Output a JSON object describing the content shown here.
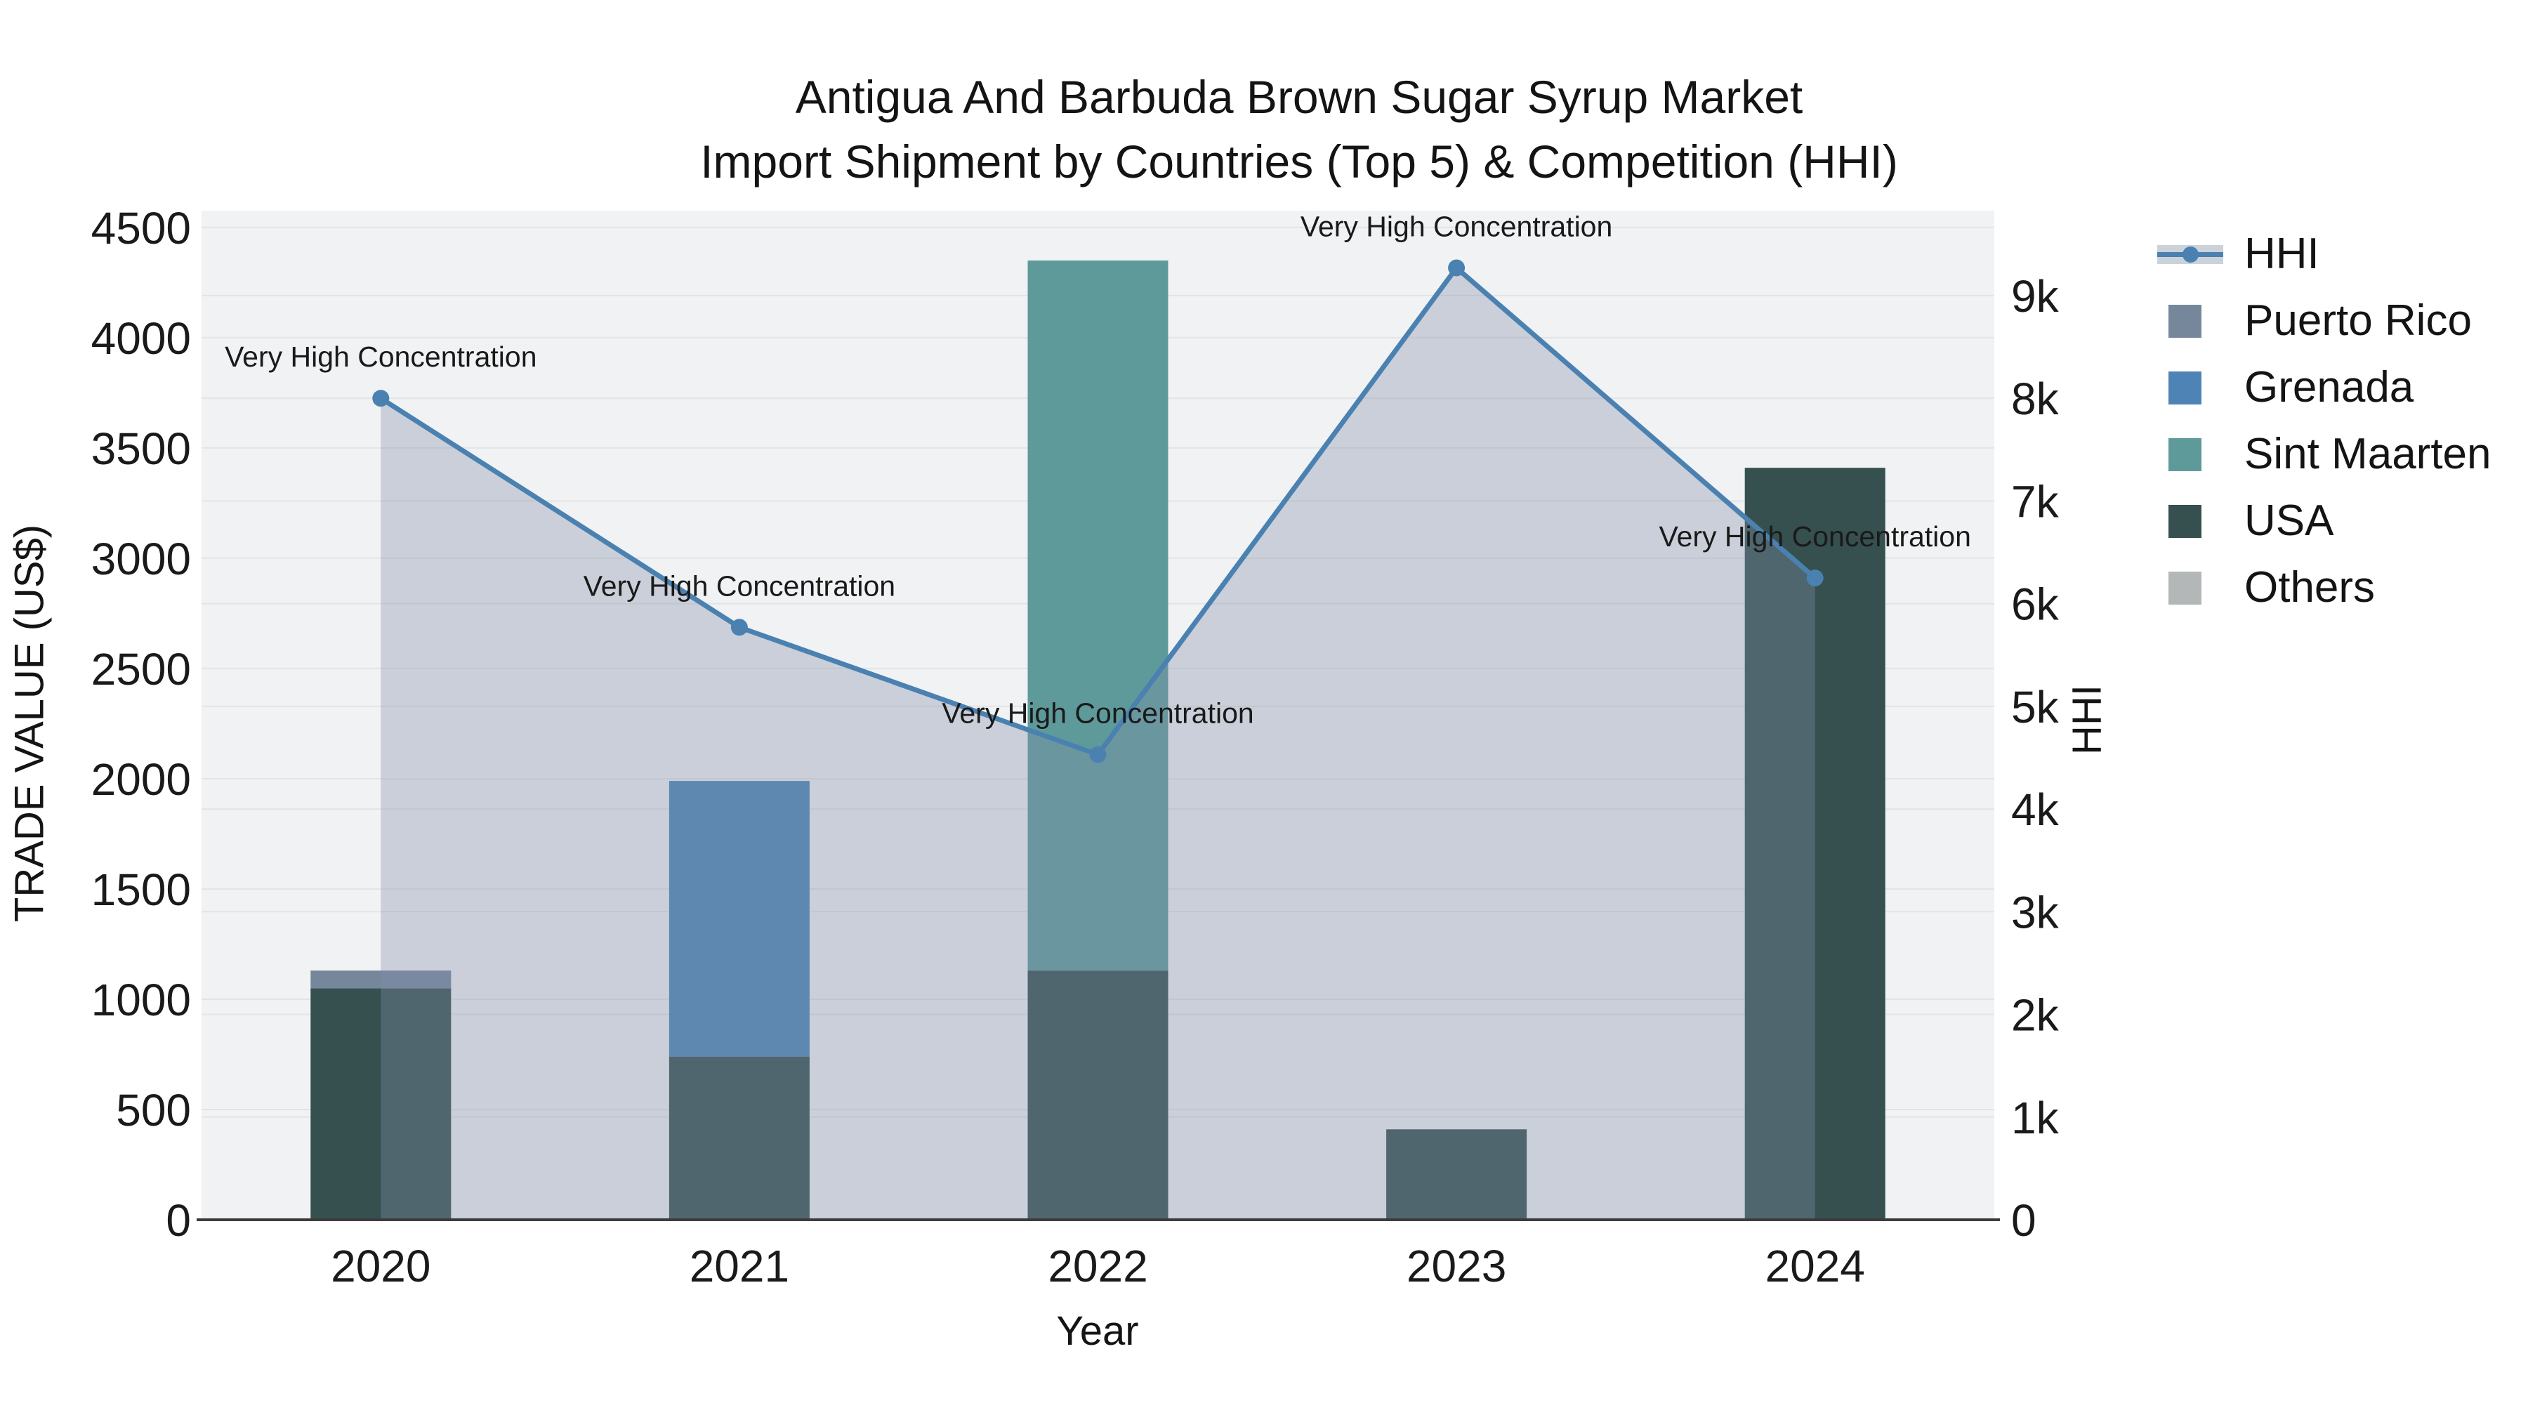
{
  "title": {
    "line1": "Antigua And Barbuda Brown Sugar Syrup Market",
    "line2": "Import Shipment by Countries (Top 5) & Competition (HHI)"
  },
  "colors": {
    "plot_background": "#f1f2f3",
    "gridline": "#e3e4e7",
    "axis_spine": "#3c3c3c",
    "text": "#1a1a1a",
    "hhi_line": "#4a81b1",
    "hhi_fill": "#808ea8",
    "hhi_fill_opacity": 0.35,
    "legend_band": "#ccd2da"
  },
  "legend": {
    "items": [
      {
        "label": "HHI",
        "type": "line",
        "color": "#4a81b1"
      },
      {
        "label": "Puerto Rico",
        "type": "patch",
        "color": "#76879b"
      },
      {
        "label": "Grenada",
        "type": "patch",
        "color": "#4e84b5"
      },
      {
        "label": "Sint Maarten",
        "type": "patch",
        "color": "#5f9a9b"
      },
      {
        "label": "USA",
        "type": "patch",
        "color": "#35504f"
      },
      {
        "label": "Others",
        "type": "patch",
        "color": "#b3b7b7"
      }
    ]
  },
  "chart_data": {
    "type": "stacked-bar+line",
    "categories": [
      "2020",
      "2021",
      "2022",
      "2023",
      "2024"
    ],
    "x_axis": {
      "label": "Year"
    },
    "left_axis": {
      "label": "TRADE VALUE (US$)",
      "tick_values": [
        0,
        500,
        1000,
        1500,
        2000,
        2500,
        3000,
        3500,
        4000,
        4500
      ],
      "tick_labels": [
        "0",
        "500",
        "1000",
        "1500",
        "2000",
        "2500",
        "3000",
        "3500",
        "4000",
        "4500"
      ],
      "range_top": 4576
    },
    "right_axis": {
      "label": "HHI",
      "tick_values": [
        0,
        1000,
        2000,
        3000,
        4000,
        5000,
        6000,
        7000,
        8000,
        9000
      ],
      "tick_labels": [
        "0",
        "1k",
        "2k",
        "3k",
        "4k",
        "5k",
        "6k",
        "7k",
        "8k",
        "9k"
      ],
      "range_top": 9827
    },
    "bar_series": [
      {
        "name": "USA",
        "color": "#35504f",
        "values": [
          1050,
          740,
          1130,
          410,
          3410
        ]
      },
      {
        "name": "Puerto Rico",
        "color": "#76879b",
        "values": [
          80,
          0,
          0,
          0,
          0
        ]
      },
      {
        "name": "Grenada",
        "color": "#4e84b5",
        "values": [
          0,
          1250,
          0,
          0,
          0
        ]
      },
      {
        "name": "Sint Maarten",
        "color": "#5f9a9b",
        "values": [
          0,
          0,
          3220,
          0,
          0
        ]
      },
      {
        "name": "Others",
        "color": "#b3b7b7",
        "values": [
          0,
          0,
          0,
          0,
          0
        ]
      }
    ],
    "line_series": {
      "name": "HHI",
      "axis": "right",
      "values": [
        8000,
        5770,
        4530,
        9270,
        6250
      ]
    },
    "annotations": [
      "Very High Concentration",
      "Very High Concentration",
      "Very High Concentration",
      "Very High Concentration",
      "Very High Concentration"
    ],
    "grid": true,
    "legend_position": "right"
  }
}
